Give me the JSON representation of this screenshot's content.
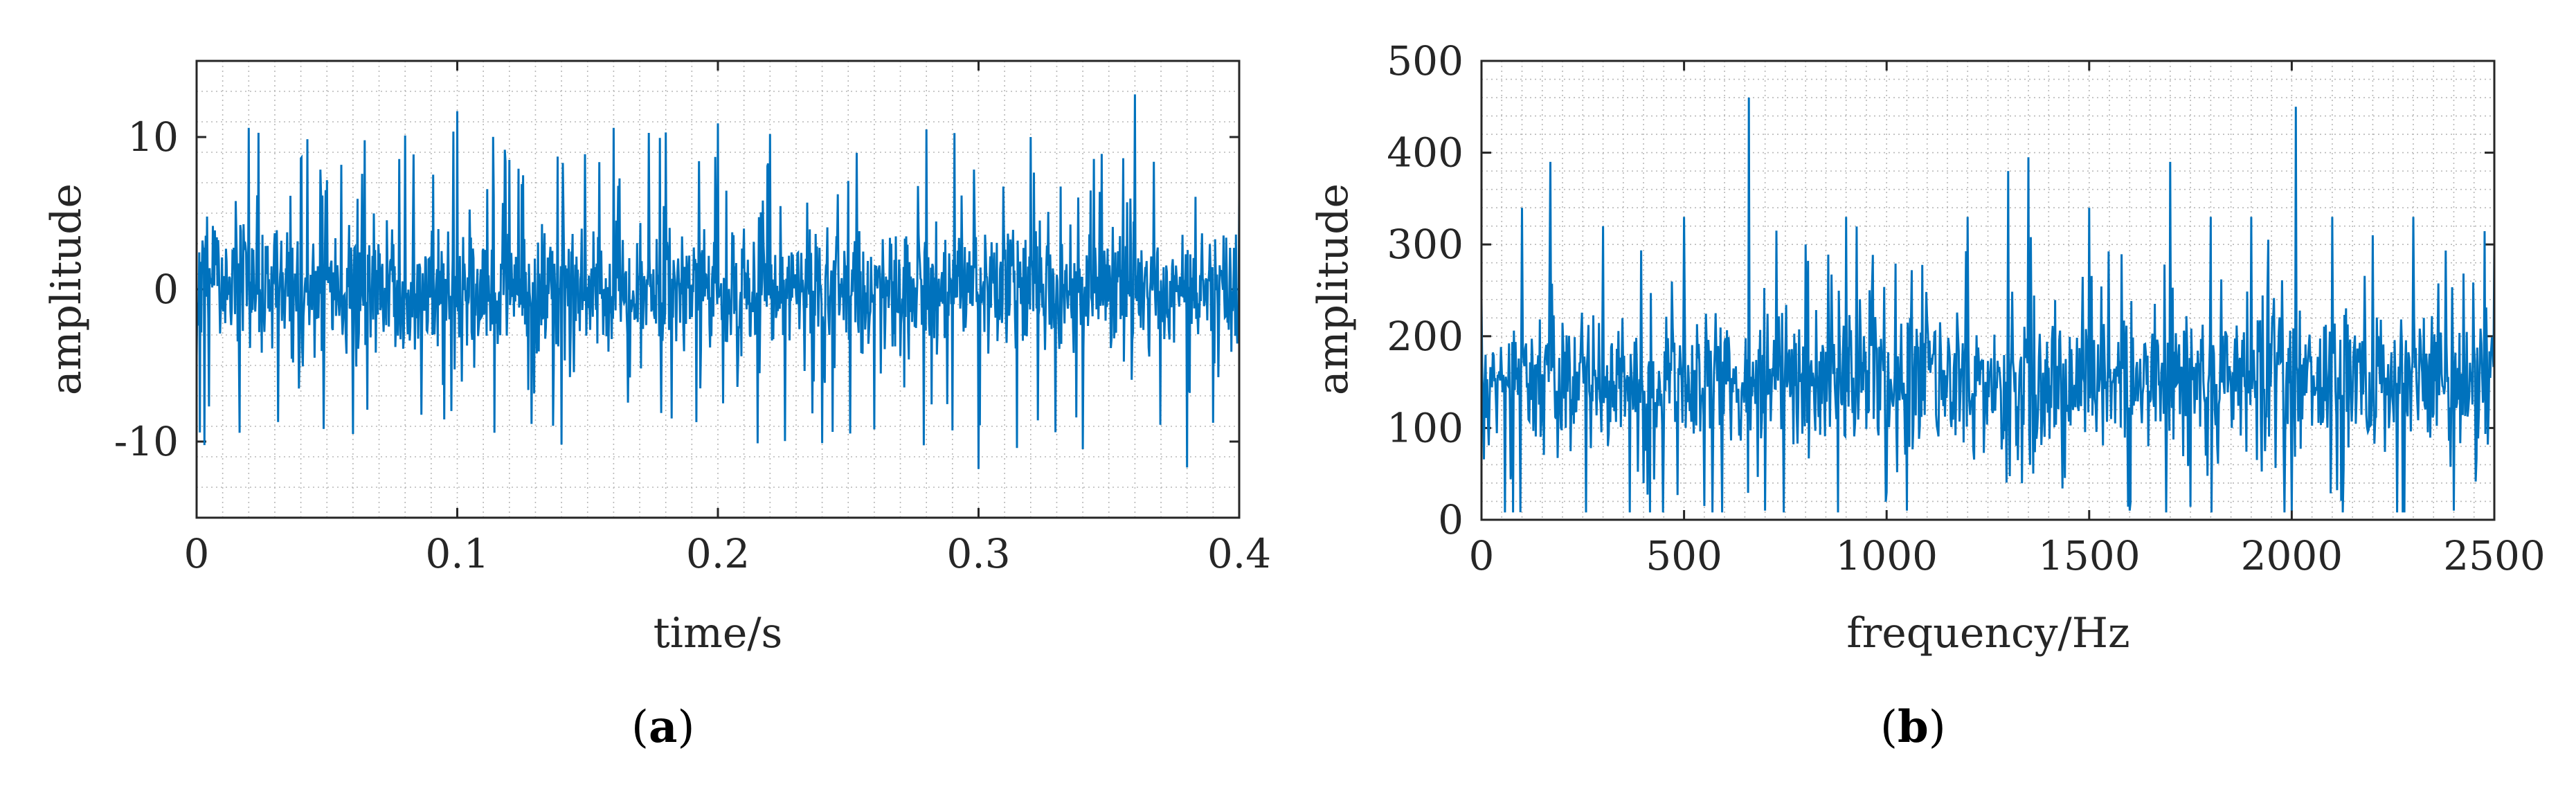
{
  "chart_data": [
    {
      "type": "line",
      "panel_label": "a",
      "xlabel": "time/s",
      "ylabel": "amplitude",
      "xlim": [
        0,
        0.4
      ],
      "ylim": [
        -15,
        15
      ],
      "xticks": [
        0,
        0.1,
        0.2,
        0.3,
        0.4
      ],
      "xtick_labels": [
        "0",
        "0.1",
        "0.2",
        "0.3",
        "0.4"
      ],
      "yticks": [
        -10,
        0,
        10
      ],
      "ytick_labels": [
        "-10",
        "0",
        "10"
      ],
      "grid": "minor dotted",
      "line_color": "#0072BD",
      "series": [
        {
          "x": [
            0.0,
            0.02,
            0.04,
            0.06,
            0.08,
            0.1,
            0.12,
            0.14,
            0.16,
            0.18,
            0.2,
            0.22,
            0.24,
            0.26,
            0.28,
            0.3,
            0.32,
            0.34,
            0.36,
            0.38,
            0.4
          ],
          "values": [
            -4.5,
            10.6,
            8.6,
            -9.5,
            10.1,
            11.7,
            8.5,
            -10.2,
            10.6,
            10.3,
            10.9,
            10.2,
            -10.1,
            -9.2,
            10.5,
            -11.8,
            10.0,
            -10.5,
            12.8,
            -11.7,
            6.1
          ]
        }
      ]
    },
    {
      "type": "line",
      "panel_label": "b",
      "xlabel": "frequency/Hz",
      "ylabel": "amplitude",
      "xlim": [
        0,
        2500
      ],
      "ylim": [
        0,
        500
      ],
      "xticks": [
        0,
        500,
        1000,
        1500,
        2000,
        2500
      ],
      "xtick_labels": [
        "0",
        "500",
        "1000",
        "1500",
        "2000",
        "2500"
      ],
      "yticks": [
        0,
        100,
        200,
        300,
        400,
        500
      ],
      "ytick_labels": [
        "0",
        "100",
        "200",
        "300",
        "400",
        "500"
      ],
      "grid": "minor dotted",
      "line_color": "#0072BD",
      "series": [
        {
          "x": [
            0,
            100,
            170,
            300,
            400,
            500,
            550,
            660,
            700,
            800,
            900,
            1000,
            1050,
            1200,
            1300,
            1350,
            1500,
            1600,
            1700,
            1800,
            1900,
            2000,
            2010,
            2100,
            2200,
            2300,
            2400,
            2500
          ],
          "values": [
            240,
            340,
            390,
            320,
            40,
            330,
            15,
            460,
            10,
            300,
            330,
            30,
            10,
            330,
            380,
            395,
            340,
            10,
            390,
            330,
            330,
            10,
            450,
            330,
            310,
            330,
            10,
            300
          ]
        }
      ]
    }
  ]
}
